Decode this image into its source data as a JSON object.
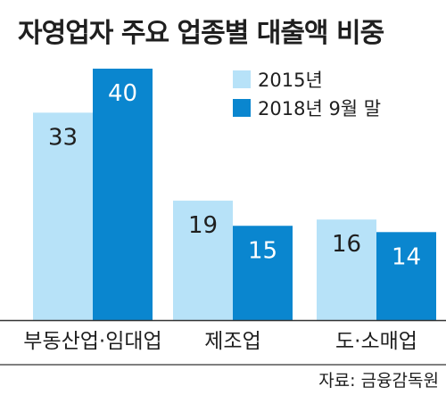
{
  "chart_data": {
    "type": "bar",
    "title": "자영업자 주요 업종별 대출액 비중",
    "categories": [
      "부동산업·임대업",
      "제조업",
      "도·소매업"
    ],
    "series": [
      {
        "name": "2015년",
        "values": [
          33,
          19,
          16
        ],
        "color": "#b7e2f8"
      },
      {
        "name": "2018년 9월 말",
        "values": [
          40,
          15,
          14
        ],
        "color": "#0a86cf"
      }
    ],
    "ylim": [
      0,
      40
    ],
    "grid": false,
    "legend": "top-right",
    "source": "자료: 금융감독원"
  }
}
